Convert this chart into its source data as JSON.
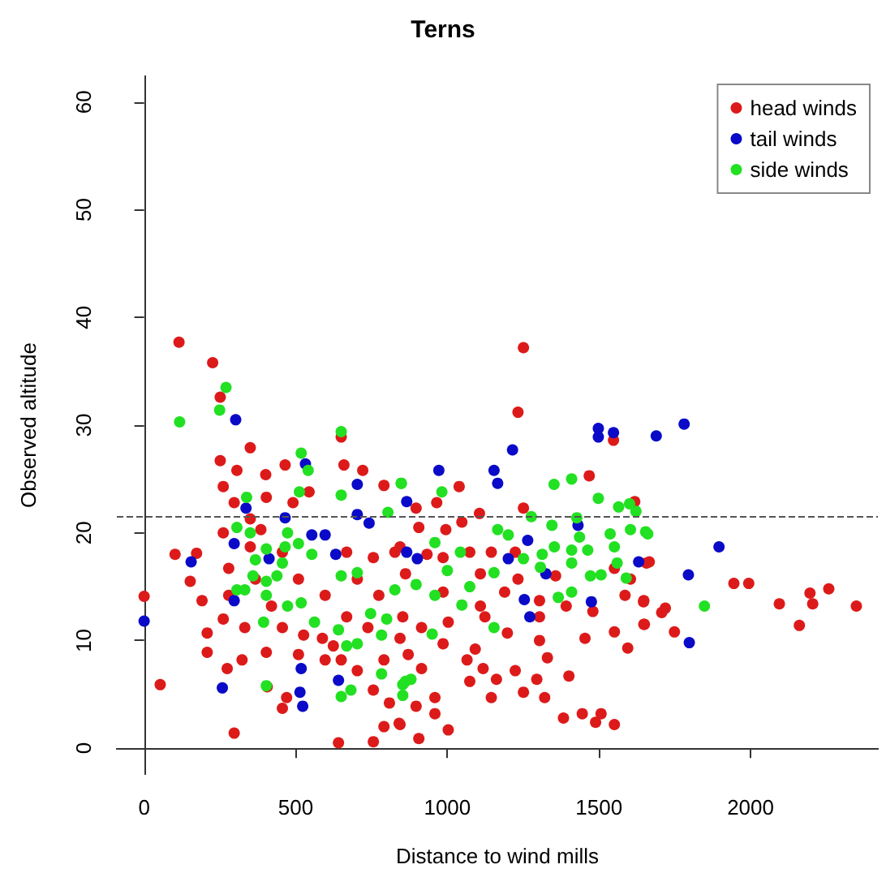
{
  "chart_data": {
    "type": "scatter",
    "title": "Terns",
    "xlabel": "Distance to wind mills",
    "ylabel": "Observed altitude",
    "xlim": [
      -90,
      2420
    ],
    "ylim": [
      -2.4,
      62.4
    ],
    "xticks": [
      0,
      500,
      1000,
      1500,
      2000
    ],
    "yticks": [
      0,
      10,
      20,
      30,
      40,
      50,
      60
    ],
    "grid": false,
    "legend": "top right",
    "marker": "circle",
    "ref_lines": [
      {
        "axis": "y",
        "value": 21.5,
        "line_style": "dashed",
        "color": "#555555"
      }
    ],
    "series": [
      {
        "name": "head winds",
        "color": "#dd1a1a",
        "x": [
          115,
          226,
          251,
          350,
          251,
          306,
          401,
          465,
          659,
          721,
          791,
          650,
          102,
          173,
          152,
          0,
          53,
          297,
          641,
          756,
          791,
          841,
          456,
          470,
          406,
          274,
          323,
          403,
          208,
          261,
          191,
          279,
          350,
          385,
          456,
          509,
          597,
          526,
          588,
          624,
          650,
          703,
          756,
          809,
          668,
          756,
          827,
          703,
          774,
          668,
          738,
          844,
          791,
          544,
          491,
          261,
          297,
          403,
          350,
          261,
          279,
          367,
          420,
          332,
          456,
          509,
          597,
          208,
          1251,
          1233,
          1548,
          1468,
          1039,
          965,
          897,
          1251,
          1106,
          1618,
          906,
          995,
          1048,
          844,
          933,
          986,
          1074,
          1145,
          1224,
          862,
          1109,
          1233,
          1357,
          1551,
          1604,
          1657,
          986,
          1109,
          1189,
          1304,
          1392,
          1480,
          1586,
          1648,
          853,
          915,
          1003,
          1124,
          1304,
          1454,
          1551,
          1648,
          1595,
          986,
          1092,
          1198,
          1304,
          871,
          915,
          1065,
          1330,
          1118,
          1162,
          1224,
          1295,
          1401,
          1074,
          959,
          1145,
          1251,
          1321,
          897,
          959,
          844,
          1003,
          906,
          1383,
          1445,
          1507,
          1489,
          1551,
          1666,
          1647,
          1707,
          1719,
          1650,
          1749,
          1945,
          1994,
          2095,
          2161,
          2196,
          2205,
          2258,
          2349
        ],
        "values": [
          37.7,
          35.8,
          32.6,
          27.9,
          26.7,
          25.8,
          25.4,
          26.3,
          26.3,
          25.8,
          24.4,
          28.9,
          18.0,
          18.1,
          15.5,
          14.1,
          5.9,
          1.4,
          0.5,
          0.6,
          2.0,
          2.3,
          3.7,
          4.7,
          5.7,
          7.4,
          8.2,
          8.9,
          10.7,
          12.0,
          13.7,
          16.7,
          18.7,
          20.3,
          18.2,
          15.7,
          14.2,
          10.5,
          10.2,
          9.5,
          8.2,
          7.2,
          5.4,
          4.2,
          18.2,
          17.7,
          18.2,
          15.7,
          14.2,
          12.2,
          11.2,
          10.2,
          8.2,
          23.8,
          22.8,
          24.3,
          22.8,
          23.3,
          21.3,
          20.0,
          14.2,
          15.7,
          13.2,
          11.2,
          11.2,
          8.7,
          8.2,
          8.9,
          37.2,
          31.2,
          28.6,
          25.3,
          24.3,
          22.8,
          22.3,
          22.3,
          21.8,
          22.9,
          20.5,
          20.3,
          21.0,
          18.7,
          18.0,
          17.7,
          18.2,
          18.2,
          18.2,
          16.2,
          16.2,
          15.7,
          16.0,
          16.7,
          15.7,
          17.2,
          14.5,
          13.2,
          14.5,
          13.7,
          13.2,
          12.7,
          14.2,
          13.7,
          12.2,
          11.2,
          11.7,
          12.2,
          12.2,
          10.2,
          10.8,
          11.5,
          9.3,
          9.7,
          9.2,
          10.7,
          10.0,
          8.7,
          7.4,
          8.2,
          8.4,
          7.4,
          6.4,
          7.2,
          6.4,
          6.7,
          6.2,
          4.7,
          4.7,
          5.2,
          4.7,
          3.9,
          3.2,
          2.2,
          1.7,
          0.9,
          2.8,
          3.2,
          3.2,
          2.4,
          2.2,
          17.3,
          13.6,
          12.6,
          13.0,
          11.5,
          10.8,
          15.3,
          15.3,
          13.4,
          11.4,
          14.4,
          13.4,
          14.8,
          13.2
        ]
      },
      {
        "name": "tail winds",
        "color": "#0a0ac8",
        "x": [
          302,
          532,
          703,
          336,
          465,
          703,
          742,
          553,
          597,
          297,
          155,
          412,
          632,
          0,
          297,
          518,
          258,
          514,
          523,
          641,
          972,
          1154,
          1166,
          1215,
          1498,
          1498,
          1548,
          866,
          1431,
          1265,
          866,
          901,
          1201,
          1325,
          1631,
          1254,
          1272,
          1475,
          1689,
          1781,
          1896,
          1795,
          1798
        ],
        "values": [
          30.5,
          26.4,
          24.5,
          22.3,
          21.4,
          21.7,
          20.9,
          19.8,
          19.8,
          19.0,
          17.3,
          17.6,
          18.0,
          11.8,
          13.7,
          7.4,
          5.6,
          5.2,
          3.9,
          6.3,
          25.8,
          25.8,
          24.6,
          27.7,
          29.7,
          28.9,
          29.3,
          22.9,
          20.7,
          19.3,
          18.2,
          17.6,
          17.6,
          16.2,
          17.3,
          13.8,
          12.2,
          13.6,
          29.0,
          30.1,
          18.7,
          16.1,
          9.8
        ]
      },
      {
        "name": "side winds",
        "color": "#22e022",
        "x": [
          270,
          249,
          117,
          650,
          518,
          541,
          512,
          650,
          848,
          804,
          338,
          306,
          350,
          473,
          509,
          465,
          403,
          367,
          553,
          438,
          456,
          403,
          359,
          306,
          332,
          403,
          518,
          473,
          394,
          650,
          703,
          562,
          641,
          668,
          703,
          747,
          800,
          783,
          827,
          783,
          862,
          853,
          403,
          682,
          650,
          848,
          982,
          1352,
          1410,
          1498,
          1565,
          1601,
          1622,
          1277,
          1427,
          1166,
          1201,
          1345,
          1436,
          1537,
          1604,
          1654,
          959,
          1043,
          1251,
          1313,
          1353,
          1410,
          1463,
          1551,
          1560,
          1000,
          1154,
          1307,
          1410,
          1472,
          1507,
          1590,
          897,
          959,
          1074,
          1048,
          1366,
          1410,
          1154,
          950,
          853,
          880,
          1661,
          1848
        ],
        "values": [
          33.5,
          31.4,
          30.3,
          29.4,
          27.4,
          25.8,
          23.8,
          23.5,
          24.6,
          21.9,
          23.3,
          20.5,
          20.0,
          20.0,
          19.0,
          18.7,
          18.5,
          17.5,
          18.0,
          16.0,
          17.2,
          15.5,
          16.0,
          14.7,
          14.7,
          14.2,
          13.5,
          13.2,
          11.7,
          16.0,
          16.3,
          11.7,
          11.0,
          9.5,
          9.7,
          12.5,
          12.0,
          10.5,
          14.7,
          6.9,
          6.2,
          4.9,
          5.8,
          5.4,
          4.8,
          24.6,
          23.8,
          24.5,
          25.0,
          23.2,
          22.4,
          22.7,
          22.0,
          21.5,
          21.4,
          20.3,
          19.8,
          20.7,
          19.6,
          19.9,
          20.3,
          20.1,
          19.1,
          18.2,
          17.6,
          18.0,
          18.7,
          18.4,
          18.4,
          18.7,
          17.2,
          16.5,
          16.3,
          16.8,
          17.2,
          16.0,
          16.1,
          15.8,
          15.2,
          14.2,
          15.0,
          13.3,
          14.0,
          14.5,
          11.2,
          10.6,
          5.9,
          6.4,
          19.9,
          13.2
        ]
      }
    ]
  }
}
